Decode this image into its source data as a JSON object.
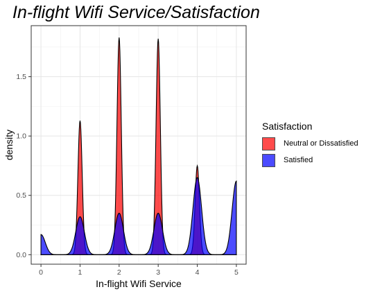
{
  "chart_data": {
    "type": "area",
    "title": "In-flight Wifi Service/Satisfaction",
    "xlabel": "In-flight Wifi Service",
    "ylabel": "density",
    "xlim": [
      -0.25,
      5.25
    ],
    "ylim": [
      -0.08,
      1.93
    ],
    "x_ticks": [
      0,
      1,
      2,
      3,
      4,
      5
    ],
    "y_ticks": [
      0.0,
      0.5,
      1.0,
      1.5
    ],
    "y_tick_labels": [
      "0.0",
      "0.5",
      "1.0",
      "1.5"
    ],
    "grid": true,
    "legend_position": "right",
    "legend_title": "Satisfaction",
    "series": [
      {
        "name": "Neutral or Dissatisfied",
        "color": "#FF0000",
        "peaks": [
          {
            "x": 1,
            "y": 1.13
          },
          {
            "x": 2,
            "y": 1.83
          },
          {
            "x": 3,
            "y": 1.82
          },
          {
            "x": 4,
            "y": 0.75
          }
        ],
        "bandwidth": 0.055
      },
      {
        "name": "Satisfied",
        "color": "#0000FF",
        "peaks": [
          {
            "x": 0,
            "y": 0.17
          },
          {
            "x": 1,
            "y": 0.32
          },
          {
            "x": 2,
            "y": 0.35
          },
          {
            "x": 3,
            "y": 0.35
          },
          {
            "x": 4,
            "y": 0.65
          },
          {
            "x": 5,
            "y": 0.62
          }
        ],
        "bandwidth": 0.11
      }
    ]
  }
}
